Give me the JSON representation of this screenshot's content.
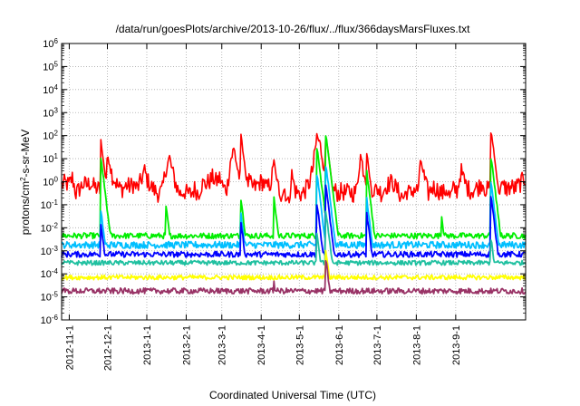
{
  "chart_data": {
    "type": "line",
    "title": "/data/run/goesPlots/archive/2013-10-26/flux/../flux/366daysMarsFluxes.txt",
    "xlabel": "Coordinated Universal Time (UTC)",
    "ylabel_parts": [
      "protons/cm",
      "2",
      "-s-sr-MeV"
    ],
    "y_scale": "log",
    "ylim": [
      1e-06,
      1000000.0
    ],
    "y_ticks": [
      {
        "value": 1e-06,
        "base": "10",
        "exp": "-6"
      },
      {
        "value": 1e-05,
        "base": "10",
        "exp": "-5"
      },
      {
        "value": 0.0001,
        "base": "10",
        "exp": "-4"
      },
      {
        "value": 0.001,
        "base": "10",
        "exp": "-3"
      },
      {
        "value": 0.01,
        "base": "10",
        "exp": "-2"
      },
      {
        "value": 0.1,
        "base": "10",
        "exp": "-1"
      },
      {
        "value": 1,
        "base": "10",
        "exp": "0"
      },
      {
        "value": 10,
        "base": "10",
        "exp": "1"
      },
      {
        "value": 100,
        "base": "10",
        "exp": "2"
      },
      {
        "value": 1000,
        "base": "10",
        "exp": "3"
      },
      {
        "value": 10000,
        "base": "10",
        "exp": "4"
      },
      {
        "value": 100000,
        "base": "10",
        "exp": "5"
      },
      {
        "value": 1000000,
        "base": "10",
        "exp": "6"
      }
    ],
    "xlim": [
      "2012-10-26",
      "2013-10-26"
    ],
    "x_ticks": [
      "2012-11-1",
      "2012-12-1",
      "2013-1-1",
      "2013-2-1",
      "2013-3-1",
      "2013-4-1",
      "2013-5-1",
      "2013-6-1",
      "2013-7-1",
      "2013-8-1",
      "2013-9-1"
    ],
    "grid": true,
    "legend": "none",
    "series": [
      {
        "color": "#ff0000",
        "baseline": 0.7,
        "noise": 0.8,
        "values": [
          0.7,
          0.9,
          0.7,
          1.5,
          0.3,
          0.5,
          0.8,
          0.7,
          0.9,
          0.6,
          0.5,
          0.4,
          0.3,
          20,
          2.0,
          1.0,
          0.5,
          0.5,
          0.7,
          0.6,
          0.8,
          0.5,
          1.0,
          3.0,
          1.0,
          0.6,
          0.4,
          0.3,
          0.4,
          4.0,
          10,
          2.0,
          0.6,
          0.3,
          0.4,
          0.3,
          0.3,
          0.5,
          0.3,
          0.8,
          0.8,
          1.0,
          1.5,
          1.0,
          1.5,
          0.5,
          0.5,
          10,
          25,
          3.0,
          0.8,
          0.5,
          1.0,
          0.6,
          0.6,
          0.9,
          1.0,
          0.5,
          0.8,
          4.0,
          0.7,
          0.3,
          0.5,
          0.1,
          2.0,
          0.4,
          0.3,
          0.3,
          0.5,
          1.0,
          5.0,
          100,
          30,
          5.0,
          1.0,
          0.5,
          0.4,
          0.3,
          0.4,
          0.3,
          0.4,
          0.3,
          0.4,
          15,
          3.0,
          1.0,
          0.6,
          0.4,
          0.5,
          0.3,
          0.6,
          0.8,
          1.0,
          0.5,
          0.3,
          0.2,
          0.4,
          0.3,
          0.5,
          0.4,
          8.0,
          1.0,
          0.3,
          0.6,
          0.5,
          0.4,
          0.3,
          0.5,
          0.2,
          0.5,
          0.4,
          3.0,
          1.0,
          0.5,
          0.4,
          0.5,
          0.6,
          1.0,
          0.4,
          0.5,
          10,
          0.6,
          0.5,
          0.6,
          0.5,
          0.6,
          0.5,
          0.7,
          1.0,
          1.5
        ],
        "peaks": [
          {
            "x": "2012-11-26",
            "y": 60
          },
          {
            "x": "2013-3-16",
            "y": 120
          },
          {
            "x": "2013-4-11",
            "y": 10
          },
          {
            "x": "2013-5-15",
            "y": 60
          },
          {
            "x": "2013-5-22",
            "y": 100
          },
          {
            "x": "2013-6-23",
            "y": 20
          },
          {
            "x": "2013-9-29",
            "y": 150
          }
        ]
      },
      {
        "color": "#00ee00",
        "baseline": 0.0045,
        "noise": 0.25,
        "peaks": [
          {
            "x": "2012-11-26",
            "y": 10
          },
          {
            "x": "2013-1-16",
            "y": 0.1
          },
          {
            "x": "2013-3-16",
            "y": 0.2
          },
          {
            "x": "2013-4-11",
            "y": 0.2
          },
          {
            "x": "2013-5-15",
            "y": 30
          },
          {
            "x": "2013-5-22",
            "y": 100
          },
          {
            "x": "2013-6-23",
            "y": 3
          },
          {
            "x": "2013-8-21",
            "y": 0.03
          },
          {
            "x": "2013-9-29",
            "y": 10
          }
        ]
      },
      {
        "color": "#00bfff",
        "baseline": 0.0018,
        "noise": 0.3,
        "peaks": [
          {
            "x": "2012-11-26",
            "y": 0.05
          },
          {
            "x": "2013-3-16",
            "y": 0.05
          },
          {
            "x": "2013-5-15",
            "y": 2
          },
          {
            "x": "2013-5-22",
            "y": 5
          },
          {
            "x": "2013-6-23",
            "y": 0.2
          },
          {
            "x": "2013-9-29",
            "y": 0.8
          }
        ]
      },
      {
        "color": "#0000ff",
        "baseline": 0.0007,
        "noise": 0.25,
        "peaks": [
          {
            "x": "2012-11-26",
            "y": 0.015
          },
          {
            "x": "2013-3-16",
            "y": 0.02
          },
          {
            "x": "2013-5-15",
            "y": 0.1
          },
          {
            "x": "2013-5-22",
            "y": 0.6
          },
          {
            "x": "2013-6-23",
            "y": 0.05
          },
          {
            "x": "2013-9-29",
            "y": 0.2
          }
        ]
      },
      {
        "color": "#20c0a0",
        "baseline": 0.0003,
        "noise": 0.2,
        "peaks": [
          {
            "x": "2013-5-15",
            "y": 0.005
          },
          {
            "x": "2013-5-22",
            "y": 0.05
          },
          {
            "x": "2013-9-29",
            "y": 0.003
          }
        ]
      },
      {
        "color": "#ffff00",
        "baseline": 7e-05,
        "noise": 0.2,
        "peaks": [
          {
            "x": "2013-5-22",
            "y": 0.001
          }
        ]
      },
      {
        "color": "#993366",
        "baseline": 1.8e-05,
        "noise": 0.25,
        "peaks": [
          {
            "x": "2013-4-11",
            "y": 5e-05
          },
          {
            "x": "2013-5-19",
            "y": 1.5e-06
          },
          {
            "x": "2013-5-22",
            "y": 0.0004
          }
        ]
      }
    ]
  }
}
